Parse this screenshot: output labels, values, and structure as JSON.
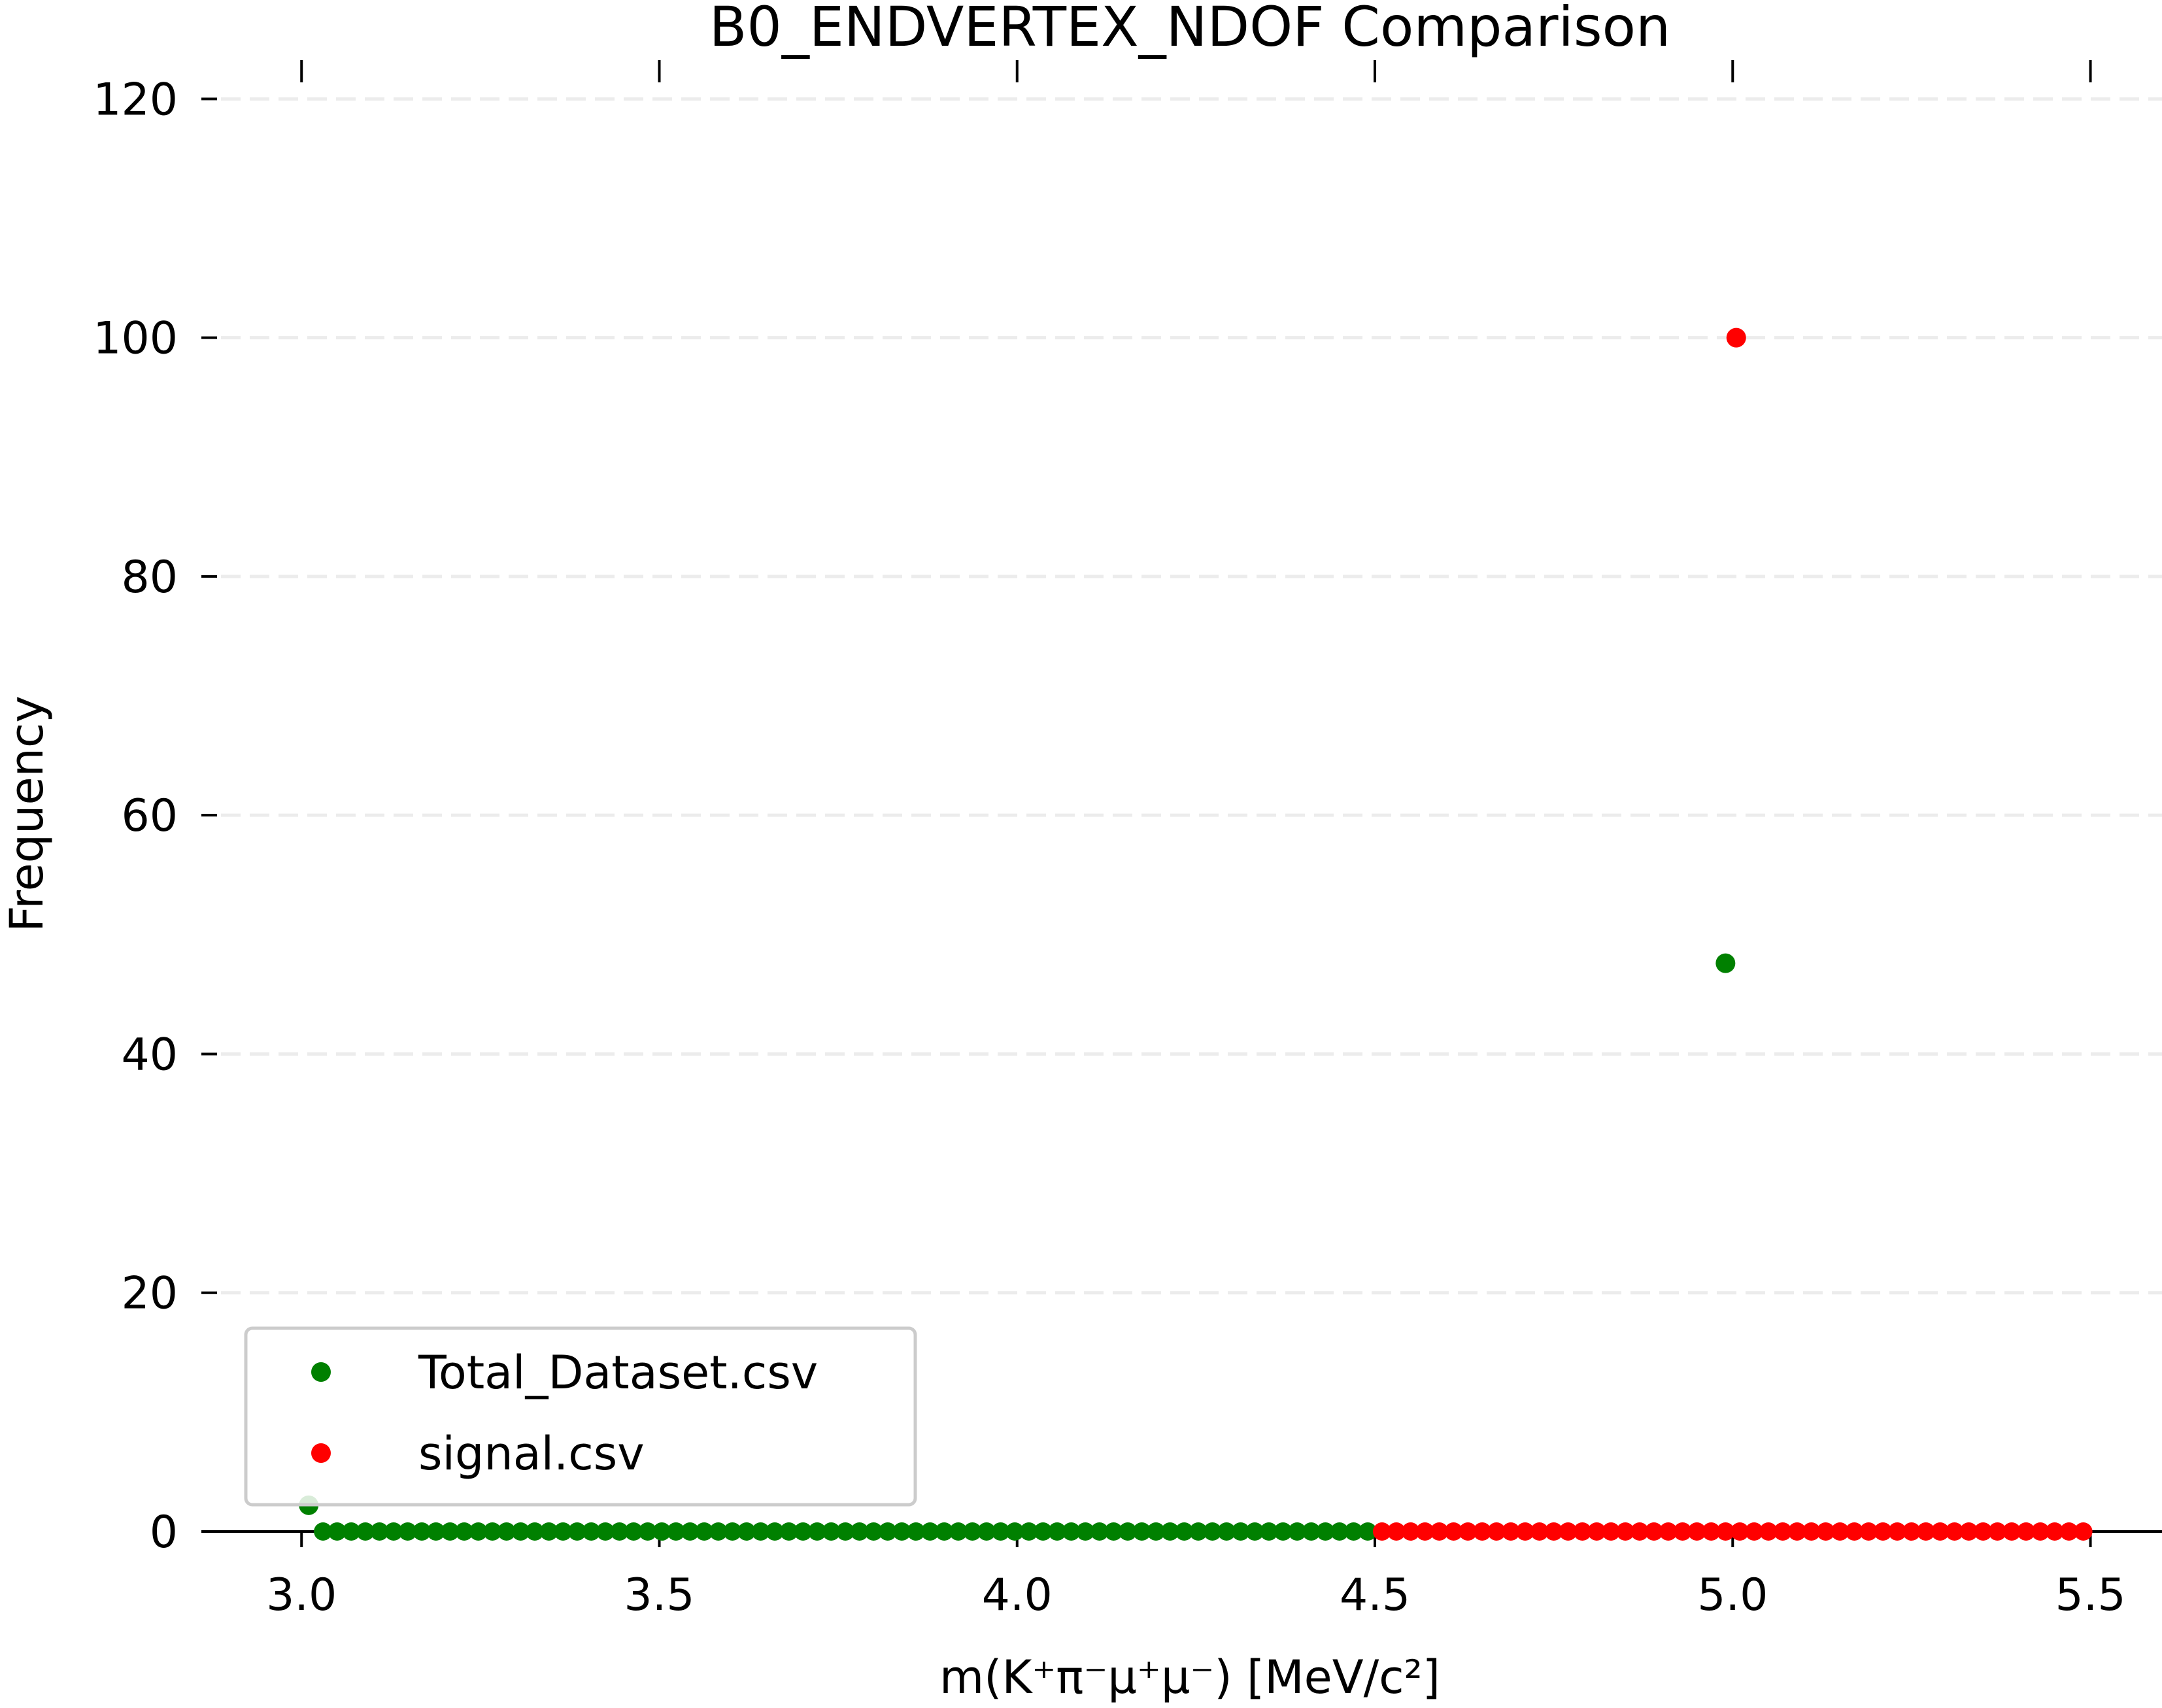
{
  "chart_data": {
    "type": "scatter",
    "title": "B0_ENDVERTEX_NDOF Comparison",
    "xlabel": "m(K⁺π⁻μ⁺μ⁻) [MeV/c²]",
    "ylabel": "Frequency",
    "xlim": [
      2.86,
      5.6
    ],
    "ylim": [
      0,
      125
    ],
    "xticks": [
      "3.0",
      "3.5",
      "4.0",
      "4.5",
      "5.0",
      "5.5"
    ],
    "yticks": [
      "0",
      "20",
      "40",
      "60",
      "80",
      "100",
      "120"
    ],
    "grid": "horizontal dashed",
    "legend_position": "lower-left",
    "series": [
      {
        "name": "Total_Dataset.csv",
        "color": "#008000",
        "points": [
          [
            3.01,
            2.2
          ],
          [
            4.99,
            47.6
          ]
        ],
        "flat_run": {
          "x_start": 3.03,
          "x_end": 4.49,
          "count": 75,
          "y": 0
        }
      },
      {
        "name": "signal.csv",
        "color": "#ff0000",
        "points": [
          [
            5.005,
            100
          ]
        ],
        "flat_run": {
          "x_start": 4.51,
          "x_end": 5.49,
          "count": 50,
          "y": 0
        }
      }
    ]
  }
}
